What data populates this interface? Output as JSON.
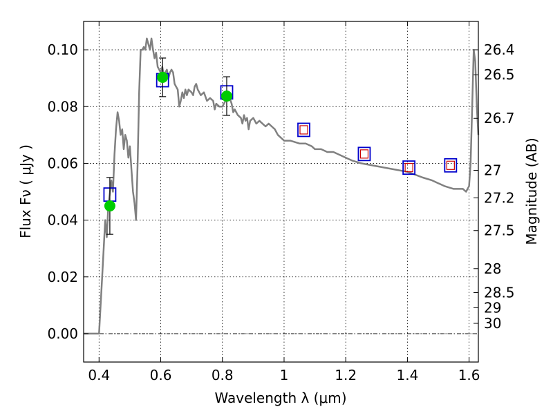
{
  "chart_data": {
    "type": "scatter",
    "xlabel": "Wavelength  λ (μm)",
    "ylabel": "Flux  Fν  ( μJy )",
    "ylabel_right": "Magnitude (AB)",
    "xlim": [
      0.35,
      1.63
    ],
    "ylim": [
      -0.01,
      0.11
    ],
    "grid": true,
    "x_ticks": [
      {
        "value": 0.4,
        "label": "0.4"
      },
      {
        "value": 0.6,
        "label": "0.6"
      },
      {
        "value": 0.8,
        "label": "0.8"
      },
      {
        "value": 1.0,
        "label": "1"
      },
      {
        "value": 1.2,
        "label": "1.2"
      },
      {
        "value": 1.4,
        "label": "1.4"
      },
      {
        "value": 1.6,
        "label": "1.6"
      }
    ],
    "y_ticks": [
      {
        "value": 0.0,
        "label": "0.00"
      },
      {
        "value": 0.02,
        "label": "0.02"
      },
      {
        "value": 0.04,
        "label": "0.04"
      },
      {
        "value": 0.06,
        "label": "0.06"
      },
      {
        "value": 0.08,
        "label": "0.08"
      },
      {
        "value": 0.1,
        "label": "0.10"
      }
    ],
    "magnitude_ticks": [
      {
        "value": 26.4,
        "label": "26.4"
      },
      {
        "value": 26.5,
        "label": "26.5"
      },
      {
        "value": 26.7,
        "label": "26.7"
      },
      {
        "value": 27.0,
        "label": "27"
      },
      {
        "value": 27.2,
        "label": "27.2"
      },
      {
        "value": 27.5,
        "label": "27.5"
      },
      {
        "value": 28.0,
        "label": "28"
      },
      {
        "value": 28.5,
        "label": "28.5"
      },
      {
        "value": 29.0,
        "label": "29"
      },
      {
        "value": 30.0,
        "label": "30"
      }
    ],
    "colors": {
      "sed": "#808080",
      "observed": "#00cc00",
      "errorbar": "#000000",
      "model_box": "#0000cc",
      "model_inner": "#cc0000",
      "grid": "#000000"
    },
    "series": [
      {
        "kind": "model_sed_line",
        "points": [
          [
            0.35,
            0.0
          ],
          [
            0.38,
            0.0
          ],
          [
            0.4,
            0.0
          ],
          [
            0.41,
            0.02
          ],
          [
            0.42,
            0.04
          ],
          [
            0.425,
            0.034
          ],
          [
            0.43,
            0.045
          ],
          [
            0.44,
            0.054
          ],
          [
            0.445,
            0.05
          ],
          [
            0.45,
            0.063
          ],
          [
            0.455,
            0.072
          ],
          [
            0.46,
            0.078
          ],
          [
            0.465,
            0.075
          ],
          [
            0.47,
            0.07
          ],
          [
            0.475,
            0.072
          ],
          [
            0.48,
            0.065
          ],
          [
            0.485,
            0.07
          ],
          [
            0.49,
            0.068
          ],
          [
            0.495,
            0.062
          ],
          [
            0.5,
            0.066
          ],
          [
            0.505,
            0.058
          ],
          [
            0.51,
            0.05
          ],
          [
            0.515,
            0.046
          ],
          [
            0.52,
            0.04
          ],
          [
            0.525,
            0.06
          ],
          [
            0.53,
            0.085
          ],
          [
            0.535,
            0.1
          ],
          [
            0.54,
            0.1
          ],
          [
            0.545,
            0.101
          ],
          [
            0.55,
            0.1
          ],
          [
            0.555,
            0.104
          ],
          [
            0.56,
            0.102
          ],
          [
            0.565,
            0.1
          ],
          [
            0.57,
            0.104
          ],
          [
            0.575,
            0.1
          ],
          [
            0.58,
            0.097
          ],
          [
            0.585,
            0.099
          ],
          [
            0.59,
            0.094
          ],
          [
            0.6,
            0.092
          ],
          [
            0.605,
            0.094
          ],
          [
            0.61,
            0.091
          ],
          [
            0.62,
            0.093
          ],
          [
            0.625,
            0.09
          ],
          [
            0.63,
            0.092
          ],
          [
            0.635,
            0.093
          ],
          [
            0.64,
            0.092
          ],
          [
            0.645,
            0.088
          ],
          [
            0.65,
            0.087
          ],
          [
            0.655,
            0.086
          ],
          [
            0.66,
            0.08
          ],
          [
            0.665,
            0.082
          ],
          [
            0.67,
            0.085
          ],
          [
            0.675,
            0.083
          ],
          [
            0.68,
            0.086
          ],
          [
            0.685,
            0.084
          ],
          [
            0.69,
            0.086
          ],
          [
            0.7,
            0.085
          ],
          [
            0.705,
            0.084
          ],
          [
            0.71,
            0.087
          ],
          [
            0.715,
            0.088
          ],
          [
            0.72,
            0.086
          ],
          [
            0.73,
            0.084
          ],
          [
            0.74,
            0.085
          ],
          [
            0.75,
            0.082
          ],
          [
            0.76,
            0.083
          ],
          [
            0.77,
            0.082
          ],
          [
            0.775,
            0.079
          ],
          [
            0.78,
            0.081
          ],
          [
            0.79,
            0.08
          ],
          [
            0.8,
            0.08
          ],
          [
            0.81,
            0.082
          ],
          [
            0.82,
            0.084
          ],
          [
            0.83,
            0.081
          ],
          [
            0.835,
            0.078
          ],
          [
            0.84,
            0.079
          ],
          [
            0.85,
            0.077
          ],
          [
            0.86,
            0.076
          ],
          [
            0.865,
            0.074
          ],
          [
            0.87,
            0.077
          ],
          [
            0.875,
            0.075
          ],
          [
            0.88,
            0.076
          ],
          [
            0.885,
            0.072
          ],
          [
            0.89,
            0.075
          ],
          [
            0.9,
            0.076
          ],
          [
            0.91,
            0.074
          ],
          [
            0.92,
            0.075
          ],
          [
            0.93,
            0.074
          ],
          [
            0.94,
            0.073
          ],
          [
            0.95,
            0.074
          ],
          [
            0.96,
            0.073
          ],
          [
            0.97,
            0.072
          ],
          [
            0.98,
            0.07
          ],
          [
            0.99,
            0.069
          ],
          [
            1.0,
            0.068
          ],
          [
            1.02,
            0.068
          ],
          [
            1.05,
            0.067
          ],
          [
            1.07,
            0.067
          ],
          [
            1.09,
            0.066
          ],
          [
            1.1,
            0.065
          ],
          [
            1.12,
            0.065
          ],
          [
            1.14,
            0.064
          ],
          [
            1.16,
            0.064
          ],
          [
            1.18,
            0.063
          ],
          [
            1.2,
            0.062
          ],
          [
            1.22,
            0.061
          ],
          [
            1.25,
            0.06
          ],
          [
            1.3,
            0.059
          ],
          [
            1.35,
            0.058
          ],
          [
            1.4,
            0.057
          ],
          [
            1.45,
            0.055
          ],
          [
            1.48,
            0.054
          ],
          [
            1.5,
            0.053
          ],
          [
            1.52,
            0.052
          ],
          [
            1.55,
            0.051
          ],
          [
            1.58,
            0.051
          ],
          [
            1.59,
            0.05
          ],
          [
            1.6,
            0.052
          ],
          [
            1.605,
            0.06
          ],
          [
            1.61,
            0.08
          ],
          [
            1.615,
            0.1
          ],
          [
            1.62,
            0.096
          ],
          [
            1.625,
            0.08
          ],
          [
            1.63,
            0.07
          ]
        ]
      },
      {
        "kind": "observed_with_errors",
        "points": [
          {
            "x": 0.435,
            "y": 0.045,
            "err": 0.01
          },
          {
            "x": 0.606,
            "y": 0.0903,
            "err": 0.0068
          },
          {
            "x": 0.814,
            "y": 0.0837,
            "err": 0.0068
          }
        ]
      },
      {
        "kind": "model_photometry",
        "points": [
          {
            "x": 0.435,
            "y": 0.049,
            "inner": false
          },
          {
            "x": 0.606,
            "y": 0.0893,
            "inner": false
          },
          {
            "x": 0.814,
            "y": 0.085,
            "inner": false
          },
          {
            "x": 1.064,
            "y": 0.0718,
            "inner": true
          },
          {
            "x": 1.26,
            "y": 0.0633,
            "inner": true
          },
          {
            "x": 1.405,
            "y": 0.0585,
            "inner": true
          },
          {
            "x": 1.54,
            "y": 0.0593,
            "inner": true
          }
        ]
      }
    ]
  }
}
